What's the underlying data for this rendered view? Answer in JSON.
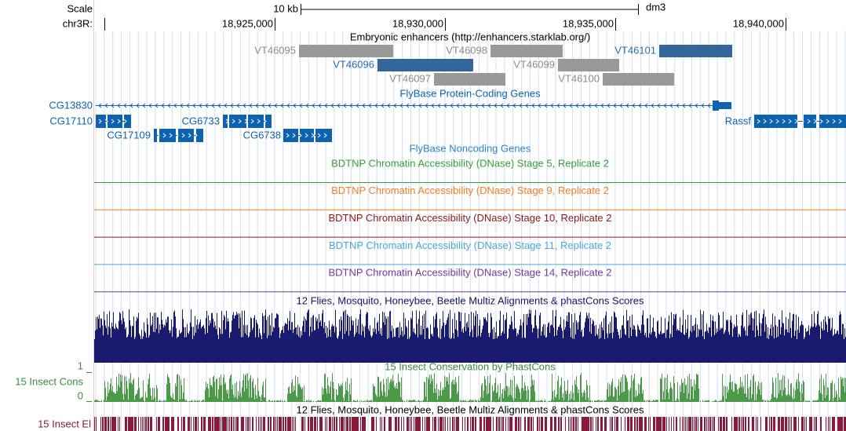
{
  "scale": {
    "label": "Scale",
    "length": "10 kb",
    "assembly": "dm3"
  },
  "ruler": {
    "chrom": "chr3R:",
    "positions": [
      "18,925,000",
      "18,930,000",
      "18,935,000",
      "18,940,000"
    ]
  },
  "enhancers": {
    "title": "Embryonic enhancers (http://enhancers.starklab.org/)",
    "items": [
      "VT46095",
      "VT46098",
      "VT46101",
      "VT46096",
      "VT46099",
      "VT46097",
      "VT46100"
    ]
  },
  "protein_genes": {
    "title": "FlyBase Protein-Coding Genes",
    "genes": [
      "CG13830",
      "CG17110",
      "CG6733",
      "Rassf",
      "CG17109",
      "CG6738"
    ]
  },
  "noncoding_genes": {
    "title": "FlyBase Noncoding Genes"
  },
  "dnase": {
    "tracks": [
      "BDTNP Chromatin Accessibility (DNase) Stage 5, Replicate 2",
      "BDTNP Chromatin Accessibility (DNase) Stage 9, Replicate 2",
      "BDTNP Chromatin Accessibility (DNase) Stage 10, Replicate 2",
      "BDTNP Chromatin Accessibility (DNase) Stage 11, Replicate 2",
      "BDTNP Chromatin Accessibility (DNase) Stage 14, Replicate 2"
    ]
  },
  "multiz": {
    "title": "12 Flies, Mosquito, Honeybee, Beetle Multiz Alignments & phastCons Scores"
  },
  "phastcons": {
    "title": "15 Insect Conservation by PhastCons",
    "label": "15 Insect Cons",
    "max": 1,
    "min": 0
  },
  "elements": {
    "title": "12 Flies, Mosquito, Honeybee, Beetle Multiz Alignments & phastCons Scores",
    "label": "15 Insect El"
  }
}
